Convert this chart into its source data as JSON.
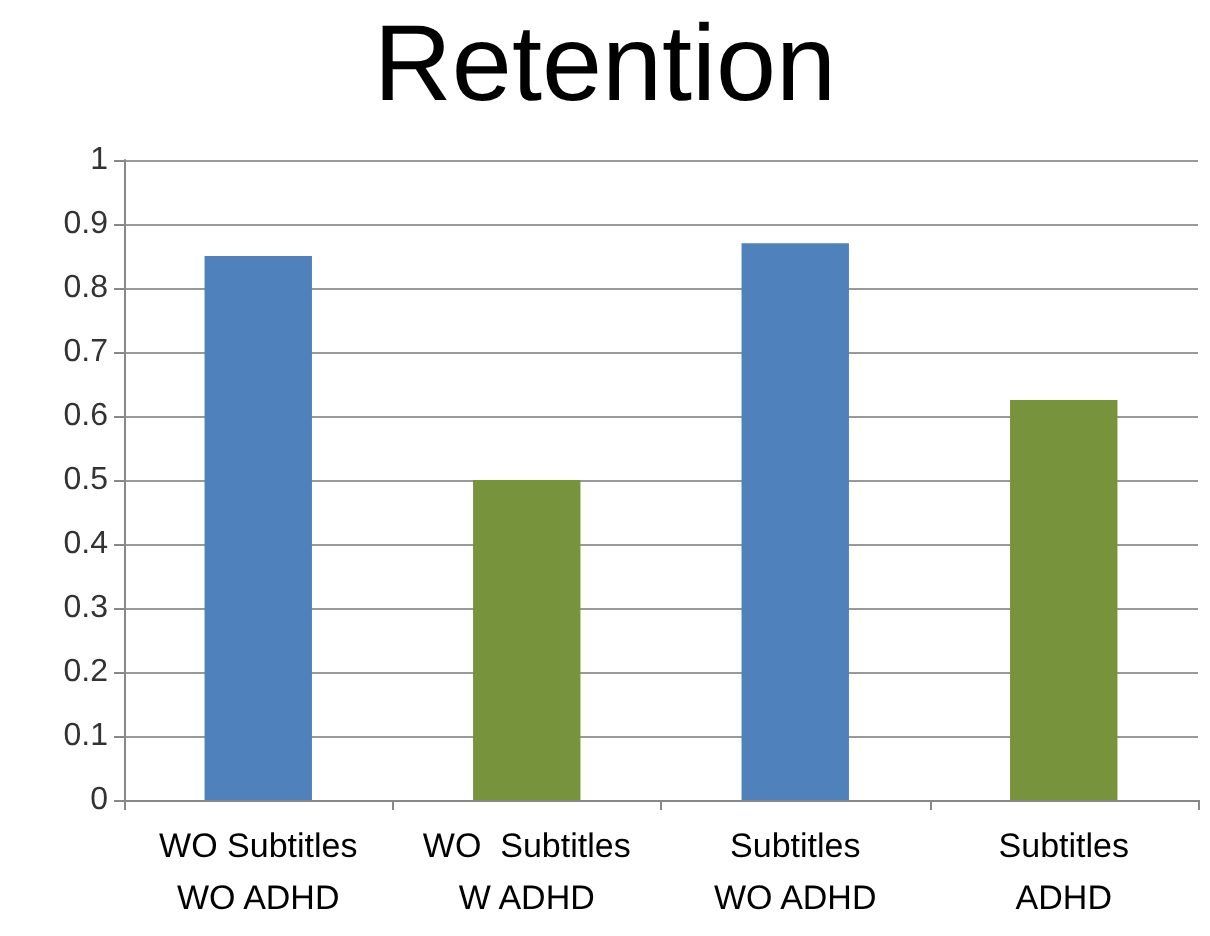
{
  "chart_data": {
    "type": "bar",
    "title": "Retention",
    "categories": [
      "WO Subtitles\nWO ADHD",
      "WO  Subtitles\nW ADHD",
      "Subtitles\nWO ADHD",
      "Subtitles\nADHD"
    ],
    "values": [
      0.85,
      0.5,
      0.87,
      0.625
    ],
    "colors": [
      "#4f81bd",
      "#77933c",
      "#4f81bd",
      "#77933c"
    ],
    "ylim": [
      0,
      1
    ],
    "yticks": [
      0,
      0.1,
      0.2,
      0.3,
      0.4,
      0.5,
      0.6,
      0.7,
      0.8,
      0.9,
      1
    ],
    "grid": "y"
  }
}
